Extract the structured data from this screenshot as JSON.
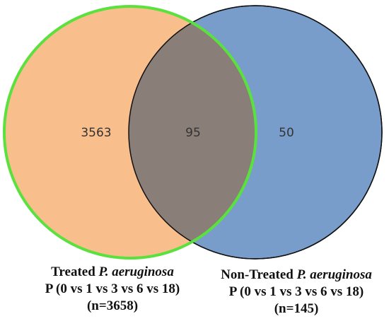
{
  "venn": {
    "sets": [
      {
        "name_prefix": "Treated ",
        "name_species": "P. aeruginosa",
        "comparison": "P (0 vs 1 vs 3 vs 6 vs 18)",
        "size_text": "(n=3658)",
        "fill_color": "#F8BE8C",
        "stroke_color": "#5BE13D"
      },
      {
        "name_prefix": "Non-Treated ",
        "name_species": "P. aeruginosa",
        "comparison": "P (0 vs 1 vs 3 vs 6 vs 18)",
        "size_text": "(n=145)",
        "fill_color": "#789DCB",
        "stroke_color": "#111111"
      }
    ],
    "regions": {
      "only_a": "3563",
      "intersection": "95",
      "only_b": "50"
    },
    "intersection_color": "#8A7E78"
  }
}
